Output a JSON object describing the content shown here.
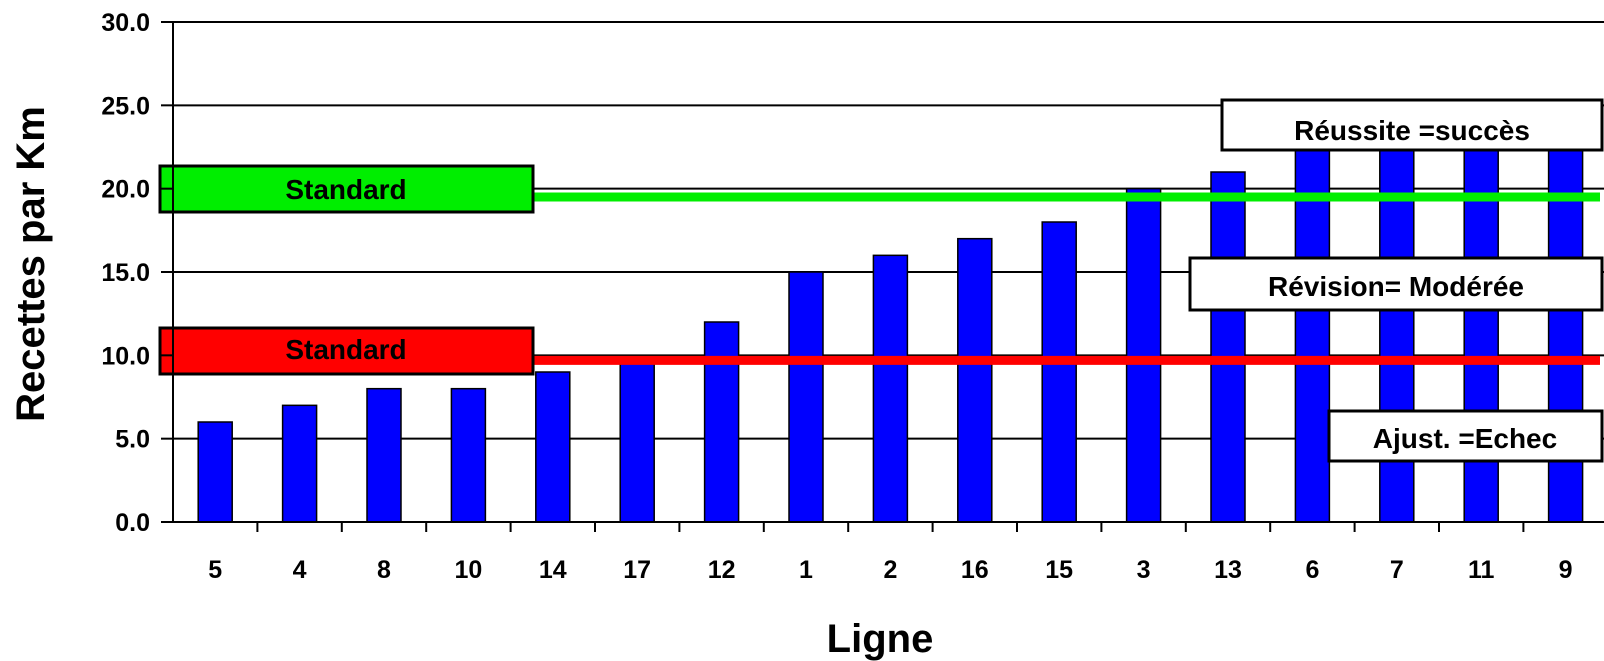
{
  "chart_data": {
    "type": "bar",
    "title": "",
    "xlabel": "Ligne",
    "ylabel": "Recettes par Km",
    "categories": [
      "5",
      "4",
      "8",
      "10",
      "14",
      "17",
      "12",
      "1",
      "2",
      "16",
      "15",
      "3",
      "13",
      "6",
      "7",
      "11",
      "9"
    ],
    "values": [
      6.0,
      7.0,
      8.0,
      8.0,
      9.0,
      10.0,
      12.0,
      15.0,
      16.0,
      17.0,
      18.0,
      20.0,
      21.0,
      23.0,
      23.0,
      23.0,
      23.0
    ],
    "ylim": [
      0,
      30
    ],
    "yticks": [
      "0.0",
      "5.0",
      "10.0",
      "15.0",
      "20.0",
      "25.0",
      "30.0"
    ],
    "grid": true,
    "bar_color": "#0000FF",
    "reference_lines": [
      {
        "value": 19.5,
        "color": "#00EE00",
        "label": "Standard"
      },
      {
        "value": 9.7,
        "color": "#FF0000",
        "label": "Standard"
      }
    ],
    "annotations": [
      "Réussite =succès",
      "Révision= Modérée",
      "Ajust. =Echec"
    ]
  }
}
